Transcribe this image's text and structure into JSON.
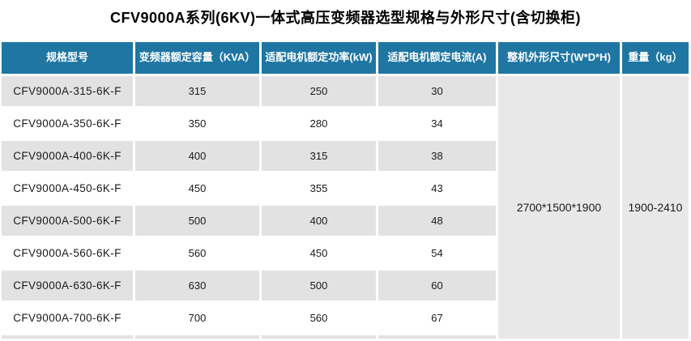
{
  "title": "CFV9000A系列(6KV)一体式高压变频器选型规格与外形尺寸(含切换柜)",
  "table": {
    "headers": [
      "规格型号",
      "变频器额定容量（KVA）",
      "适配电机额定功率(kW)",
      "适配电机额定电流(A)",
      "整机外形尺寸(W*D*H)",
      "重量（kg）"
    ],
    "rows": [
      {
        "model": "CFV9000A-315-6K-F",
        "capacity_kva": "315",
        "power_kw": "250",
        "current_a": "30"
      },
      {
        "model": "CFV9000A-350-6K-F",
        "capacity_kva": "350",
        "power_kw": "280",
        "current_a": "34"
      },
      {
        "model": "CFV9000A-400-6K-F",
        "capacity_kva": "400",
        "power_kw": "315",
        "current_a": "38"
      },
      {
        "model": "CFV9000A-450-6K-F",
        "capacity_kva": "450",
        "power_kw": "355",
        "current_a": "43"
      },
      {
        "model": "CFV9000A-500-6K-F",
        "capacity_kva": "500",
        "power_kw": "400",
        "current_a": "48"
      },
      {
        "model": "CFV9000A-560-6K-F",
        "capacity_kva": "560",
        "power_kw": "450",
        "current_a": "54"
      },
      {
        "model": "CFV9000A-630-6K-F",
        "capacity_kva": "630",
        "power_kw": "500",
        "current_a": "60"
      },
      {
        "model": "CFV9000A-700-6K-F",
        "capacity_kva": "700",
        "power_kw": "560",
        "current_a": "67"
      }
    ],
    "merged": {
      "dimensions": "2700*1500*1900",
      "weight_range": "1900-2410"
    }
  },
  "colors": {
    "header_bg": "#1F76A3",
    "row_alt_bg": "#E2E2E2",
    "merged_bg": "#E8E8E8"
  }
}
